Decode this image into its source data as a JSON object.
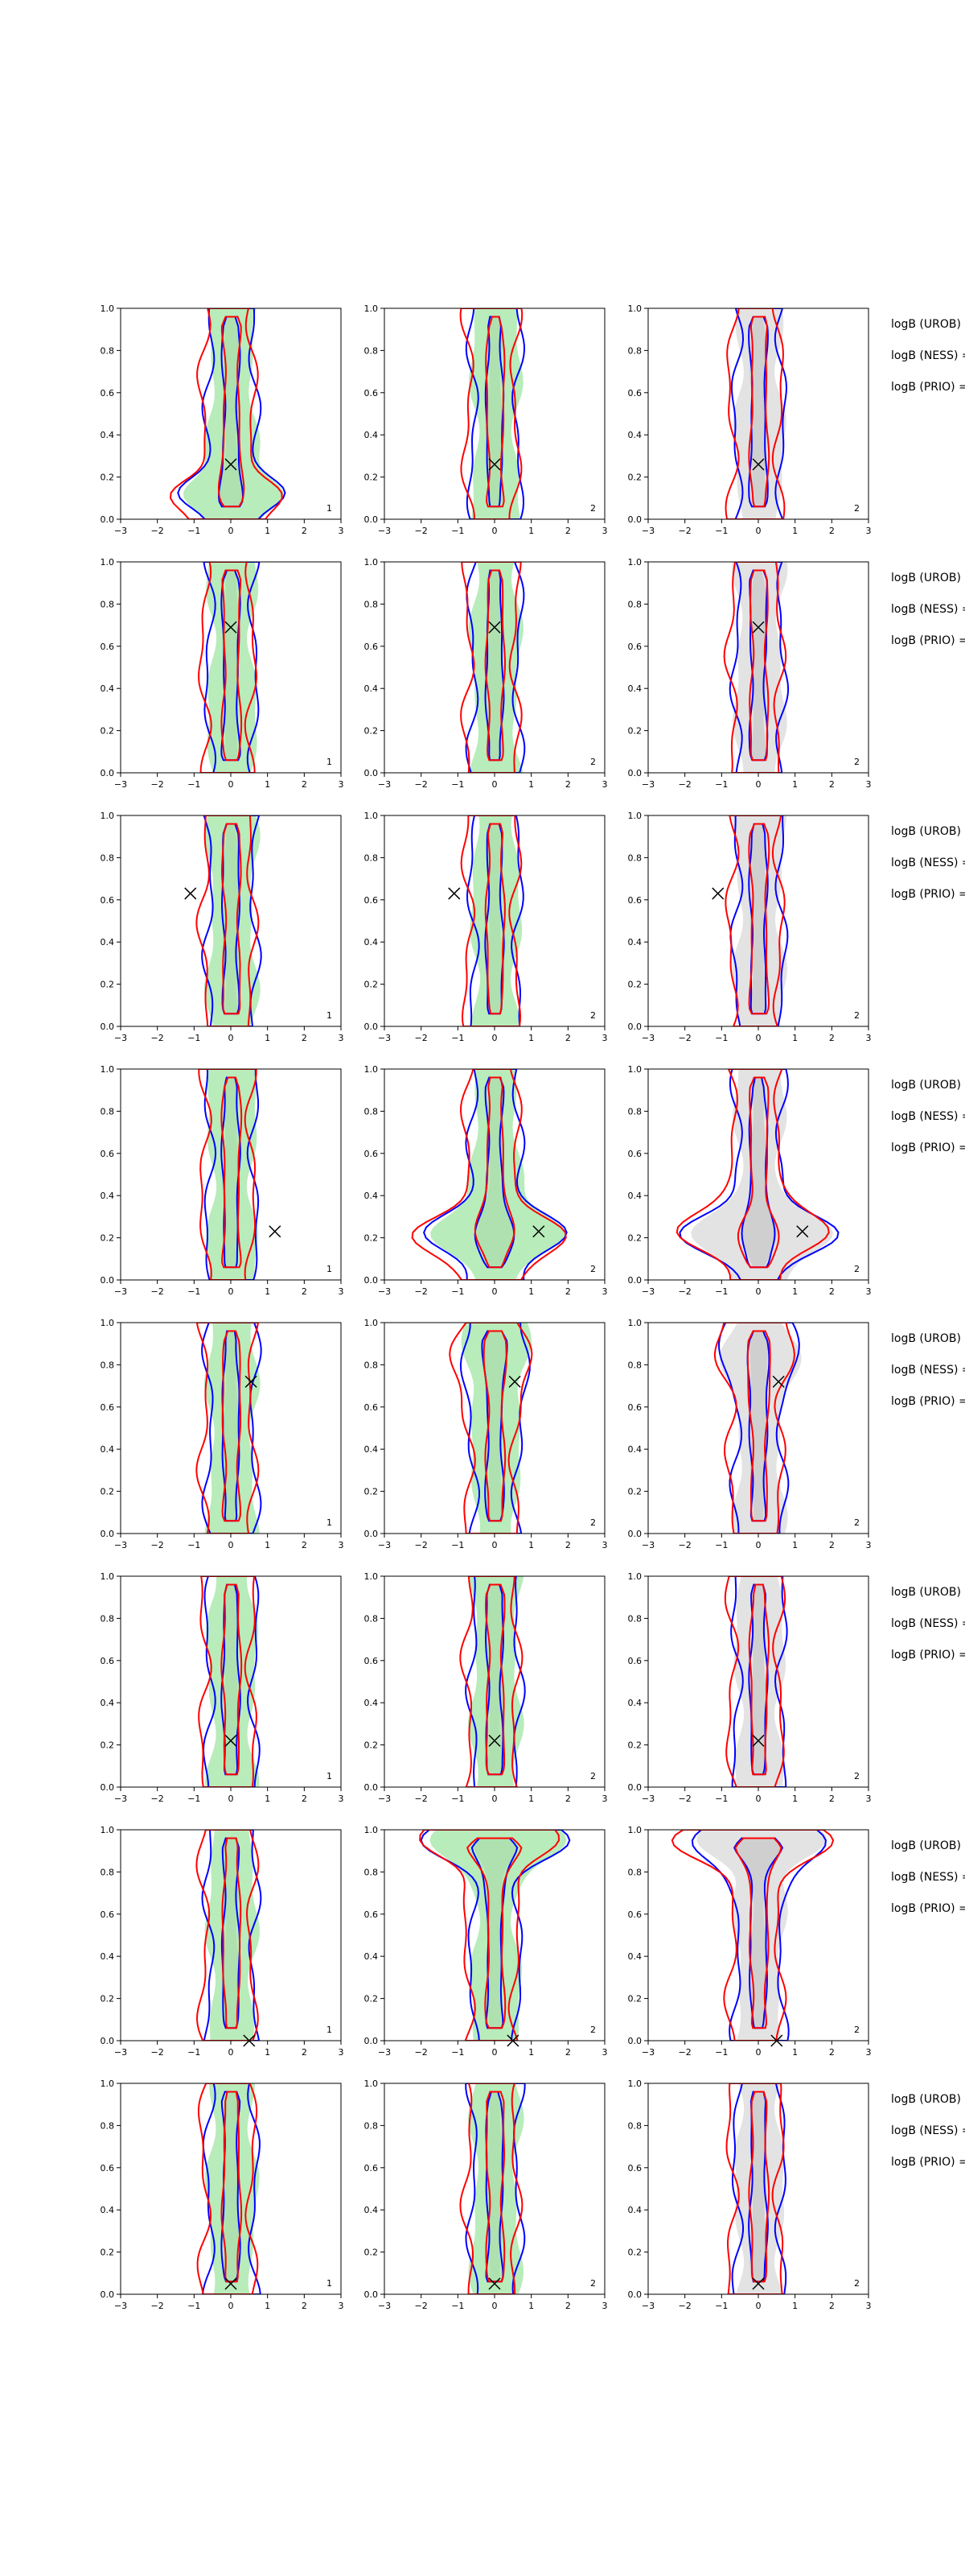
{
  "colors": {
    "background": "#ffffff",
    "axis": "#000000",
    "prior_fill_green": "#b8ecbb",
    "prior_fill_gray": "#e3e3e3",
    "inner_fill_gray": "#cfcfcf",
    "contour_blue": "#0000ff",
    "contour_red": "#ff0000",
    "marker": "#000000"
  },
  "side_labels": [
    "logB (UROB) =",
    "logB (NESS) =",
    "logB (PRIO) ="
  ],
  "chart_data": {
    "type": "contour-grid",
    "rows": 8,
    "columns": 3,
    "xlim": [
      -3,
      3
    ],
    "ylim": [
      0,
      1
    ],
    "x_ticks": [
      "−3",
      "−2",
      "−1",
      "0",
      "1",
      "2",
      "3"
    ],
    "y_ticks": [
      "0.0",
      "0.2",
      "0.4",
      "0.6",
      "0.8",
      "1.0"
    ],
    "column_panel_labels": [
      "1",
      "2",
      "2"
    ],
    "column_background_fill": [
      "green",
      "green",
      "gray"
    ],
    "true_parameter_markers": [
      {
        "x": 0.0,
        "y": 0.26
      },
      {
        "x": 0.0,
        "y": 0.69
      },
      {
        "x": -1.1,
        "y": 0.63
      },
      {
        "x": 1.2,
        "y": 0.23
      },
      {
        "x": 0.55,
        "y": 0.72
      },
      {
        "x": 0.0,
        "y": 0.22
      },
      {
        "x": 0.5,
        "y": 0.0
      },
      {
        "x": 0.0,
        "y": 0.05
      }
    ],
    "series": [
      {
        "color": "blue",
        "levels": 2
      },
      {
        "color": "red",
        "levels": 2
      }
    ]
  }
}
